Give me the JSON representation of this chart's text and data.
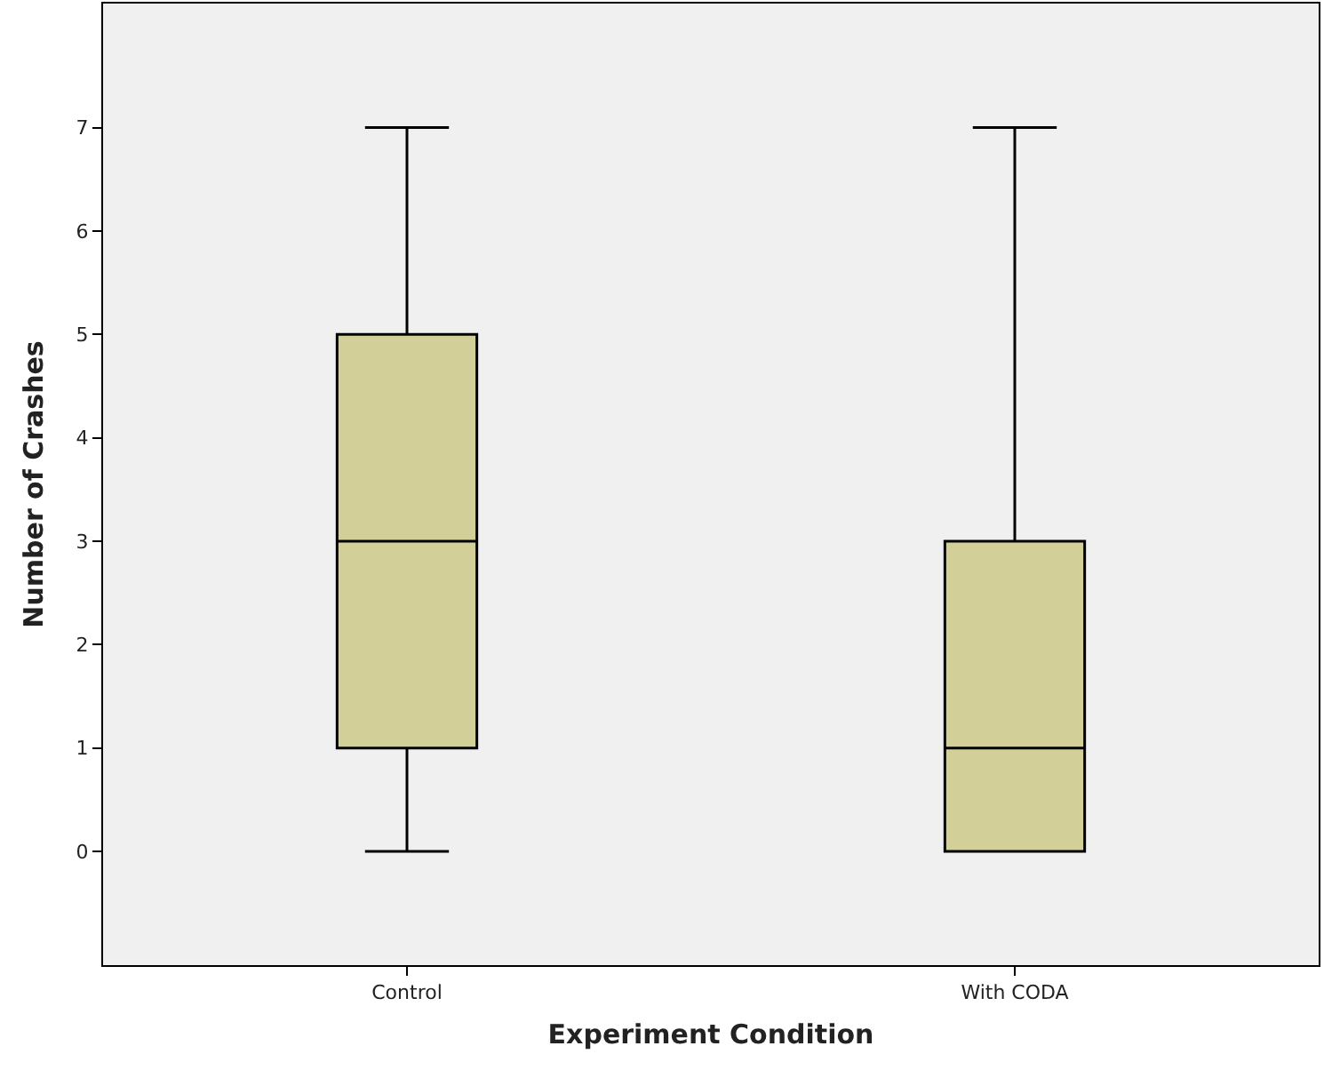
{
  "chart_data": {
    "type": "box",
    "xlabel": "Experiment Condition",
    "ylabel": "Number of Crashes",
    "categories": [
      "Control",
      "With CODA"
    ],
    "boxes": [
      {
        "low": 0,
        "q1": 1,
        "median": 3,
        "q3": 5,
        "high": 7
      },
      {
        "low": 0,
        "q1": 0,
        "median": 1,
        "q3": 3,
        "high": 7
      }
    ],
    "color": "#d3cf98",
    "ylim": [
      -1.1,
      8.2
    ],
    "yticks": [
      0,
      1,
      2,
      3,
      4,
      5,
      6,
      7
    ],
    "grid": false
  }
}
